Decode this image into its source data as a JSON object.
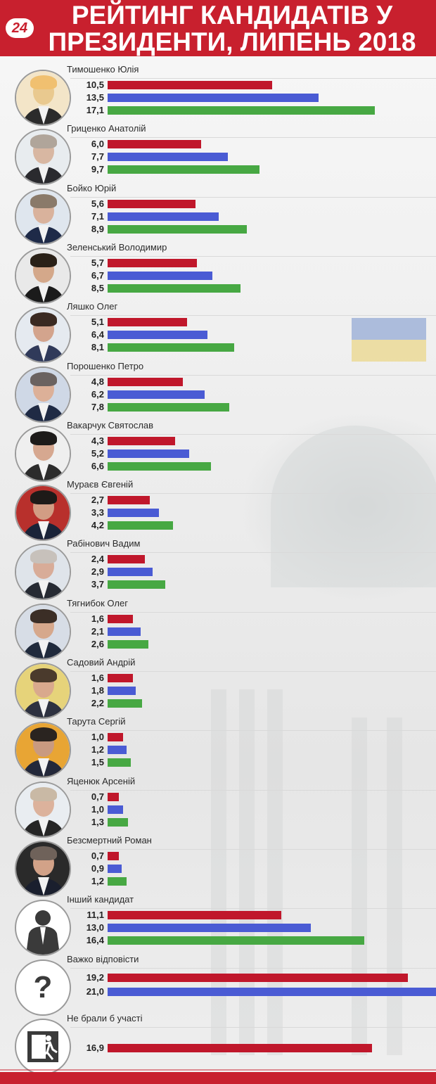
{
  "header": {
    "logo_text": "24",
    "title_line1": "РЕЙТИНГ КАНДИДАТІВ У",
    "title_line2": "ПРЕЗИДЕНТИ, ЛИПЕНЬ 2018"
  },
  "colors": {
    "header": "#c8202e",
    "series": [
      "#c0172b",
      "#4a5bd4",
      "#47a843"
    ]
  },
  "chart_data": {
    "type": "bar",
    "orientation": "horizontal",
    "title": "РЕЙТИНГ КАНДИДАТІВ У ПРЕЗИДЕНТИ, ЛИПЕНЬ 2018",
    "xlim": [
      0,
      21.0
    ],
    "grid": false,
    "legend": "none",
    "rows": [
      {
        "name": "Тимошенко Юлія",
        "avatar": "yulia-tymoshenko-photo",
        "values": [
          "10,5",
          "13,5",
          "17,1"
        ]
      },
      {
        "name": "Гриценко Анатолій",
        "avatar": "anatoliy-hrytsenko-photo",
        "values": [
          "6,0",
          "7,7",
          "9,7"
        ]
      },
      {
        "name": "Бойко Юрій",
        "avatar": "yuriy-boyko-photo",
        "values": [
          "5,6",
          "7,1",
          "8,9"
        ]
      },
      {
        "name": "Зеленський Володимир",
        "avatar": "volodymyr-zelenskyi-photo",
        "values": [
          "5,7",
          "6,7",
          "8,5"
        ]
      },
      {
        "name": "Ляшко Олег",
        "avatar": "oleh-lyashko-photo",
        "values": [
          "5,1",
          "6,4",
          "8,1"
        ]
      },
      {
        "name": "Порошенко Петро",
        "avatar": "petro-poroshenko-photo",
        "values": [
          "4,8",
          "6,2",
          "7,8"
        ]
      },
      {
        "name": "Вакарчук Святослав",
        "avatar": "sviatoslav-vakarchuk-photo",
        "values": [
          "4,3",
          "5,2",
          "6,6"
        ]
      },
      {
        "name": "Мураєв Євгеній",
        "avatar": "yevheniy-muraiev-photo",
        "values": [
          "2,7",
          "3,3",
          "4,2"
        ]
      },
      {
        "name": "Рабінович Вадим",
        "avatar": "vadym-rabinovych-photo",
        "values": [
          "2,4",
          "2,9",
          "3,7"
        ]
      },
      {
        "name": "Тягнибок Олег",
        "avatar": "oleh-tyahnybok-photo",
        "values": [
          "1,6",
          "2,1",
          "2,6"
        ]
      },
      {
        "name": "Садовий Андрій",
        "avatar": "andriy-sadovyi-photo",
        "values": [
          "1,6",
          "1,8",
          "2,2"
        ]
      },
      {
        "name": "Тарута Сергій",
        "avatar": "serhiy-taruta-photo",
        "values": [
          "1,0",
          "1,2",
          "1,5"
        ]
      },
      {
        "name": "Яценюк Арсеній",
        "avatar": "arseniy-yatsenyuk-photo",
        "values": [
          "0,7",
          "1,0",
          "1,3"
        ]
      },
      {
        "name": "Безсмертний Роман",
        "avatar": "roman-bezsmertnyi-photo",
        "values": [
          "0,7",
          "0,9",
          "1,2"
        ]
      },
      {
        "name": "Інший кандидат",
        "avatar": "silhouette-icon",
        "values": [
          "11,1",
          "13,0",
          "16,4"
        ]
      },
      {
        "name": "Важко відповісти",
        "avatar": "question-mark-icon",
        "values": [
          "19,2",
          "21,0"
        ]
      },
      {
        "name": "Не брали б участі",
        "avatar": "exit-sign-icon",
        "values": [
          "16,9"
        ]
      }
    ]
  }
}
